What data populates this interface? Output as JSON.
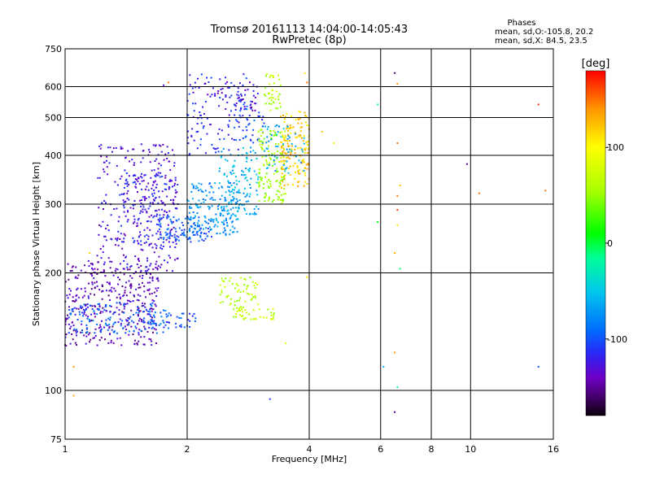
{
  "chart_data": {
    "type": "scatter",
    "title": "Tromsø 20161113 14:04:00-14:05:43",
    "subtitle": "RwPretec (8p)",
    "stats": {
      "heading": "Phases",
      "line1": "mean, sd,O:-105.8, 20.2",
      "line2": "mean, sd,X:  84.5, 23.5"
    },
    "xlabel": "Frequency [MHz]",
    "ylabel": "Stationary phase Virtual Height [km]",
    "x_scale": "log",
    "y_scale": "log",
    "xlim": [
      1,
      16
    ],
    "ylim": [
      75,
      750
    ],
    "x_ticks": [
      1,
      2,
      4,
      6,
      8,
      10,
      16
    ],
    "x_tick_labels": [
      "1",
      "2",
      "4",
      "6",
      "8",
      "10",
      "16"
    ],
    "y_ticks": [
      75,
      100,
      200,
      300,
      400,
      500,
      600,
      750
    ],
    "y_tick_labels": [
      "75",
      "100",
      "200",
      "300",
      "400",
      "500",
      "600",
      "750"
    ],
    "grid": true,
    "colorbar": {
      "label": "[deg]",
      "range": [
        -180,
        180
      ],
      "ticks": [
        100,
        0,
        -100
      ],
      "tick_labels": [
        "100",
        "0",
        "-100"
      ]
    },
    "clusters": [
      {
        "x_range": [
          1.0,
          1.7
        ],
        "y_range": [
          130,
          215
        ],
        "phase": -140,
        "count": 380
      },
      {
        "x_range": [
          1.02,
          1.8
        ],
        "y_range": [
          140,
          168
        ],
        "phase": -95,
        "count": 140
      },
      {
        "x_range": [
          1.6,
          2.1
        ],
        "y_range": [
          145,
          158
        ],
        "phase": -100,
        "count": 40
      },
      {
        "x_range": [
          1.2,
          1.9
        ],
        "y_range": [
          200,
          430
        ],
        "phase": -130,
        "count": 260
      },
      {
        "x_range": [
          1.35,
          1.9
        ],
        "y_range": [
          230,
          360
        ],
        "phase": -120,
        "count": 160
      },
      {
        "x_range": [
          1.7,
          2.3
        ],
        "y_range": [
          240,
          280
        ],
        "phase": -95,
        "count": 100
      },
      {
        "x_range": [
          2.0,
          2.7
        ],
        "y_range": [
          250,
          340
        ],
        "phase": -75,
        "count": 170
      },
      {
        "x_range": [
          2.4,
          3.0
        ],
        "y_range": [
          280,
          420
        ],
        "phase": -60,
        "count": 120
      },
      {
        "x_range": [
          2.0,
          2.8
        ],
        "y_range": [
          400,
          650
        ],
        "phase": -115,
        "count": 110
      },
      {
        "x_range": [
          2.6,
          3.1
        ],
        "y_range": [
          430,
          560
        ],
        "phase": -105,
        "count": 50
      },
      {
        "x_range": [
          3.0,
          3.5
        ],
        "y_range": [
          300,
          470
        ],
        "phase": 50,
        "count": 130
      },
      {
        "x_range": [
          3.4,
          4.0
        ],
        "y_range": [
          330,
          520
        ],
        "phase": 120,
        "count": 160
      },
      {
        "x_range": [
          3.1,
          3.9
        ],
        "y_range": [
          360,
          480
        ],
        "phase": -60,
        "count": 60
      },
      {
        "x_range": [
          3.1,
          3.4
        ],
        "y_range": [
          520,
          650
        ],
        "phase": 60,
        "count": 40
      },
      {
        "x_range": [
          2.4,
          3.0
        ],
        "y_range": [
          162,
          195
        ],
        "phase": 60,
        "count": 60
      },
      {
        "x_range": [
          2.6,
          3.3
        ],
        "y_range": [
          152,
          162
        ],
        "phase": 65,
        "count": 40
      },
      {
        "x_range": [
          2.2,
          3.0
        ],
        "y_range": [
          520,
          620
        ],
        "phase": -130,
        "count": 40
      }
    ],
    "points": [
      {
        "x": 1.05,
        "y": 115,
        "phase": 140
      },
      {
        "x": 1.05,
        "y": 97,
        "phase": 130
      },
      {
        "x": 1.15,
        "y": 225,
        "phase": 120
      },
      {
        "x": 1.75,
        "y": 605,
        "phase": -130
      },
      {
        "x": 1.8,
        "y": 615,
        "phase": 150
      },
      {
        "x": 3.4,
        "y": 605,
        "phase": 60
      },
      {
        "x": 3.9,
        "y": 650,
        "phase": 110
      },
      {
        "x": 3.95,
        "y": 615,
        "phase": 150
      },
      {
        "x": 4.6,
        "y": 430,
        "phase": 110
      },
      {
        "x": 4.3,
        "y": 460,
        "phase": 120
      },
      {
        "x": 3.95,
        "y": 195,
        "phase": 110
      },
      {
        "x": 3.5,
        "y": 132,
        "phase": 90
      },
      {
        "x": 3.2,
        "y": 95,
        "phase": -110
      },
      {
        "x": 5.9,
        "y": 540,
        "phase": -10
      },
      {
        "x": 5.9,
        "y": 270,
        "phase": 10
      },
      {
        "x": 6.1,
        "y": 115,
        "phase": -60
      },
      {
        "x": 6.5,
        "y": 650,
        "phase": -160
      },
      {
        "x": 6.6,
        "y": 610,
        "phase": 140
      },
      {
        "x": 6.6,
        "y": 430,
        "phase": 150
      },
      {
        "x": 6.7,
        "y": 335,
        "phase": 120
      },
      {
        "x": 6.6,
        "y": 315,
        "phase": 150
      },
      {
        "x": 6.6,
        "y": 290,
        "phase": 165
      },
      {
        "x": 6.6,
        "y": 265,
        "phase": 110
      },
      {
        "x": 6.5,
        "y": 225,
        "phase": 130
      },
      {
        "x": 6.7,
        "y": 205,
        "phase": -10
      },
      {
        "x": 6.5,
        "y": 125,
        "phase": 140
      },
      {
        "x": 6.6,
        "y": 102,
        "phase": -20
      },
      {
        "x": 6.5,
        "y": 88,
        "phase": -150
      },
      {
        "x": 9.8,
        "y": 380,
        "phase": -150
      },
      {
        "x": 10.5,
        "y": 320,
        "phase": 150
      },
      {
        "x": 14.7,
        "y": 540,
        "phase": 170
      },
      {
        "x": 15.3,
        "y": 325,
        "phase": 150
      },
      {
        "x": 14.7,
        "y": 115,
        "phase": -100
      }
    ]
  }
}
